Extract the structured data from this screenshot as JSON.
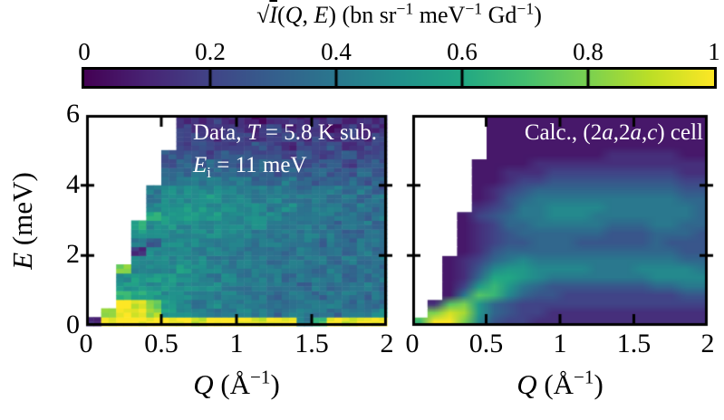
{
  "figure_kind": "neutron-scattering-intensity-maps",
  "colorbar": {
    "title_text": "√I(Q, E) (bn sr^-1 meV^-1 Gd^-1)",
    "title_runs": [
      {
        "t": "√"
      },
      {
        "t": "I",
        "i": true,
        "ov": true
      },
      {
        "t": "("
      },
      {
        "t": "Q",
        "i": true
      },
      {
        "t": ", "
      },
      {
        "t": "E",
        "i": true
      },
      {
        "t": ") (bn sr"
      },
      {
        "t": "−1",
        "sup": true
      },
      {
        "t": " meV"
      },
      {
        "t": "−1",
        "sup": true
      },
      {
        "t": " Gd"
      },
      {
        "t": "−1",
        "sup": true
      },
      {
        "t": ")"
      }
    ],
    "range": [
      0,
      1
    ],
    "ticks": [
      0,
      0.2,
      0.4,
      0.6,
      0.8,
      1
    ],
    "tick_labels": [
      "0",
      "0.2",
      "0.4",
      "0.6",
      "0.8",
      "1"
    ],
    "colormap": "viridis",
    "colormap_stops": [
      "#440154",
      "#482475",
      "#414487",
      "#355f8d",
      "#2a788e",
      "#21918c",
      "#22a884",
      "#44bf70",
      "#7ad151",
      "#bddf26",
      "#fde725"
    ],
    "border_color": "#000000"
  },
  "y_axis": {
    "label": "E (meV)",
    "label_runs": [
      {
        "t": "E",
        "i": true
      },
      {
        "t": " (meV)"
      }
    ],
    "ticks": [
      0,
      2,
      4,
      6
    ],
    "tick_labels": [
      "0",
      "2",
      "4",
      "6"
    ],
    "lim": [
      0,
      6
    ]
  },
  "chart_data": [
    {
      "id": "data-panel",
      "type": "heatmap",
      "annotation_lines": [
        "Data, T = 5.8 K sub.",
        "E_i = 11 meV"
      ],
      "annotation_runs": [
        [
          {
            "t": "Data, "
          },
          {
            "t": "T",
            "i": true
          },
          {
            "t": " = 5.8 K sub."
          }
        ],
        [
          {
            "t": "E",
            "i": true
          },
          {
            "t": "i",
            "sub": true
          },
          {
            "t": " = 11 meV"
          }
        ]
      ],
      "xlabel": "Q (Å^-1)",
      "xlabel_runs": [
        {
          "t": "Q",
          "i": true
        },
        {
          "t": " (Å"
        },
        {
          "t": "−1",
          "sup": true
        },
        {
          "t": ")"
        }
      ],
      "ylabel": "E (meV)",
      "xlim": [
        0,
        2
      ],
      "ylim": [
        0,
        6
      ],
      "x_ticks": [
        0,
        0.5,
        1,
        1.5,
        2
      ],
      "x_tick_labels": [
        "0",
        "0.5",
        "1",
        "1.5",
        "2"
      ],
      "y_ticks": [
        0,
        2,
        4,
        6
      ],
      "value_scale": {
        "min": 0,
        "max": 1,
        "digit_max": 15,
        "masked_char": ".",
        "masked_color": "#ffffff"
      },
      "ncols": 20,
      "nrows": 24,
      "dQ": 0.1,
      "dE": 0.25,
      "render_style": "noisy",
      "rows_bottom_to_top": [
        [
          "2ffff",
          "ffeff",
          "feff6",
          "afeff"
        ],
        [
          ".cfed",
          "87766",
          "76566",
          "65667"
        ],
        [
          "..fec",
          "87676",
          "66656",
          "66565"
        ],
        [
          "..a98",
          "77667",
          "66566",
          "56656"
        ],
        [
          "..887",
          "87776",
          "66665",
          "65665"
        ],
        [
          "..788",
          "87767",
          "66656",
          "66556"
        ],
        [
          "..c77",
          "78776",
          "66666",
          "56565"
        ],
        [
          "...77",
          "77766",
          "66566",
          "65656"
        ],
        [
          "...27",
          "77676",
          "66656",
          "56565"
        ],
        [
          "...64",
          "77767",
          "66666",
          "56566"
        ],
        [
          "...87",
          "77777",
          "76666",
          "66556"
        ],
        [
          "...97",
          "87777",
          "77666",
          "65665"
        ],
        [
          "....9",
          "88887",
          "77766",
          "66656"
        ],
        [
          "....7",
          "78878",
          "77676",
          "66565"
        ],
        [
          "....6",
          "77787",
          "76766",
          "65656"
        ],
        [
          "....6",
          "77777",
          "66665",
          "66564"
        ],
        [
          ".....",
          "56666",
          "65565",
          "45545"
        ],
        [
          ".....",
          "55655",
          "55454",
          "54454"
        ],
        [
          ".....",
          "45454",
          "45443",
          "44344"
        ],
        [
          ".....",
          "44434",
          "43434",
          "33433"
        ],
        [
          ".....",
          ".3433",
          "34323",
          "34233"
        ],
        [
          ".....",
          ".3323",
          "32332",
          "32323"
        ],
        [
          ".....",
          ".3223",
          "22322",
          "21322"
        ],
        [
          ".....",
          ".2232",
          "21222",
          "23122"
        ]
      ]
    },
    {
      "id": "calc-panel",
      "type": "heatmap",
      "annotation_lines": [
        "Calc., (2a,2a,c) cell"
      ],
      "annotation_runs": [
        [
          {
            "t": "Calc., (2"
          },
          {
            "t": "a",
            "i": true
          },
          {
            "t": ",2"
          },
          {
            "t": "a",
            "i": true
          },
          {
            "t": ","
          },
          {
            "t": "c",
            "i": true
          },
          {
            "t": ") cell"
          }
        ]
      ],
      "xlabel": "Q (Å^-1)",
      "xlabel_runs": [
        {
          "t": "Q",
          "i": true
        },
        {
          "t": " (Å"
        },
        {
          "t": "−1",
          "sup": true
        },
        {
          "t": ")"
        }
      ],
      "ylabel": "E (meV)",
      "xlim": [
        0,
        2
      ],
      "ylim": [
        0,
        6
      ],
      "x_ticks": [
        0,
        0.5,
        1,
        1.5,
        2
      ],
      "x_tick_labels": [
        "0",
        "0.5",
        "1",
        "1.5",
        "2"
      ],
      "y_ticks": [
        0,
        2,
        4,
        6
      ],
      "value_scale": {
        "min": 0,
        "max": 1,
        "digit_max": 15,
        "masked_char": ".",
        "masked_color": "#ffffff"
      },
      "ncols": 20,
      "nrows": 24,
      "dQ": 0.1,
      "dE": 0.25,
      "render_style": "smooth",
      "rows_bottom_to_top": [
        [
          "affc7",
          "43322",
          "22222",
          "22222"
        ],
        [
          ".ced8",
          "54332",
          "22222",
          "22222"
        ],
        [
          ".2bc8",
          "54333",
          "33333",
          "33333"
        ],
        [
          "..16b",
          "a7544",
          "33333",
          "33344"
        ],
        [
          "..138",
          "a8654",
          "44444",
          "45566"
        ],
        [
          "..125",
          "99876",
          "66666",
          "67777"
        ],
        [
          "..124",
          "78877",
          "77666",
          "77776"
        ],
        [
          "..123",
          "56766",
          "66666",
          "66655"
        ],
        [
          "...12",
          "45555",
          "55555",
          "55544"
        ],
        [
          "...12",
          "34455",
          "54444",
          "45444"
        ],
        [
          "...12",
          "34555",
          "55544",
          "45554"
        ],
        [
          "...12",
          "35566",
          "66655",
          "56655"
        ],
        [
          "...13",
          "45667",
          "77666",
          "66665"
        ],
        [
          "....2",
          "34667",
          "77766",
          "66665"
        ],
        [
          "....1",
          "24566",
          "66666",
          "66655"
        ],
        [
          "....1",
          "23455",
          "55555",
          "55544"
        ],
        [
          "....1",
          "12334",
          "44444",
          "44433"
        ],
        [
          "....1",
          "12223",
          "33333",
          "33322"
        ],
        [
          "....1",
          "11122",
          "22222",
          "22222"
        ],
        [
          ".....",
          "11111",
          "11122",
          "22211"
        ],
        [
          ".....",
          "11111",
          "11111",
          "11111"
        ],
        [
          ".....",
          "11111",
          "11111",
          "11111"
        ],
        [
          ".....",
          "11111",
          "11111",
          "11111"
        ],
        [
          ".....",
          "11111",
          "11111",
          "11111"
        ]
      ]
    }
  ]
}
